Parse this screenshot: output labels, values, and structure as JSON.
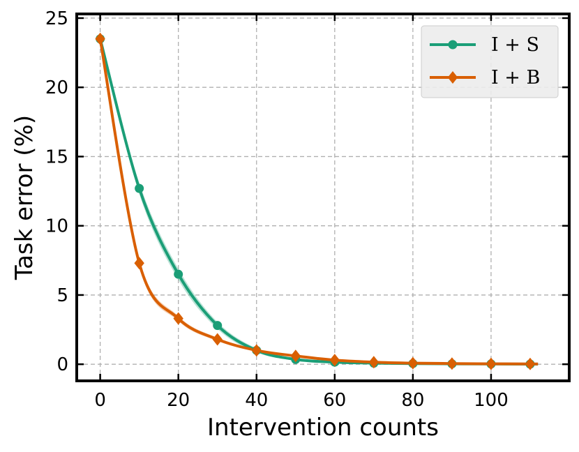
{
  "chart_data": {
    "type": "line",
    "xlabel": "Intervention counts",
    "ylabel": "Task error (%)",
    "xlim": [
      -6,
      120
    ],
    "ylim": [
      -1.2,
      25.3
    ],
    "xticks": [
      0,
      20,
      40,
      60,
      80,
      100
    ],
    "yticks": [
      0,
      5,
      10,
      15,
      20,
      25
    ],
    "grid": true,
    "legend_position": "top-right",
    "series": [
      {
        "name": "I + S",
        "color": "#1b9e77",
        "marker": "circle",
        "x": [
          0,
          10,
          20,
          30,
          40,
          50,
          60,
          70,
          80,
          90,
          100,
          110
        ],
        "y": [
          23.5,
          12.7,
          6.5,
          2.8,
          1.0,
          0.35,
          0.15,
          0.08,
          0.05,
          0.03,
          0.02,
          0.01
        ],
        "band": [
          0,
          0.4,
          0.4,
          0.25,
          0.15,
          0.08,
          0.05,
          0.03,
          0.02,
          0.01,
          0.01,
          0.01
        ]
      },
      {
        "name": "I + B",
        "color": "#d95f02",
        "marker": "diamond",
        "x": [
          0,
          10,
          20,
          30,
          40,
          50,
          60,
          70,
          80,
          90,
          100,
          110
        ],
        "y": [
          23.5,
          7.3,
          3.3,
          1.8,
          1.0,
          0.6,
          0.3,
          0.15,
          0.08,
          0.05,
          0.03,
          0.02
        ],
        "band": [
          0,
          0.25,
          0.18,
          0.12,
          0.08,
          0.06,
          0.04,
          0.03,
          0.02,
          0.01,
          0.01,
          0.01
        ]
      }
    ]
  }
}
